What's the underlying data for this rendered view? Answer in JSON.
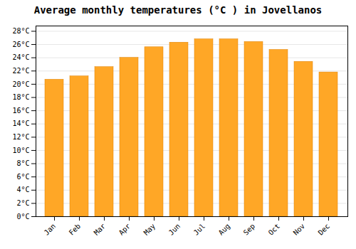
{
  "chart_data": {
    "type": "bar",
    "title": "Average monthly temperatures (°C ) in Jovellanos",
    "categories": [
      "Jan",
      "Feb",
      "Mar",
      "Apr",
      "May",
      "Jun",
      "Jul",
      "Aug",
      "Sep",
      "Oct",
      "Nov",
      "Dec"
    ],
    "values": [
      20.7,
      21.2,
      22.6,
      24.0,
      25.6,
      26.3,
      26.8,
      26.8,
      26.4,
      25.2,
      23.4,
      21.8
    ],
    "color": "#FFA726",
    "ylim": [
      0,
      28.8
    ],
    "yticks": [
      {
        "value": 0,
        "label": "0°C"
      },
      {
        "value": 2,
        "label": "2°C"
      },
      {
        "value": 4,
        "label": "4°C"
      },
      {
        "value": 6,
        "label": "6°C"
      },
      {
        "value": 8,
        "label": "8°C"
      },
      {
        "value": 10,
        "label": "10°C"
      },
      {
        "value": 12,
        "label": "12°C"
      },
      {
        "value": 14,
        "label": "14°C"
      },
      {
        "value": 16,
        "label": "16°C"
      },
      {
        "value": 18,
        "label": "18°C"
      },
      {
        "value": 20,
        "label": "20°C"
      },
      {
        "value": 22,
        "label": "22°C"
      },
      {
        "value": 24,
        "label": "24°C"
      },
      {
        "value": 26,
        "label": "26°C"
      },
      {
        "value": 28,
        "label": "28°C"
      }
    ],
    "grid": true
  }
}
